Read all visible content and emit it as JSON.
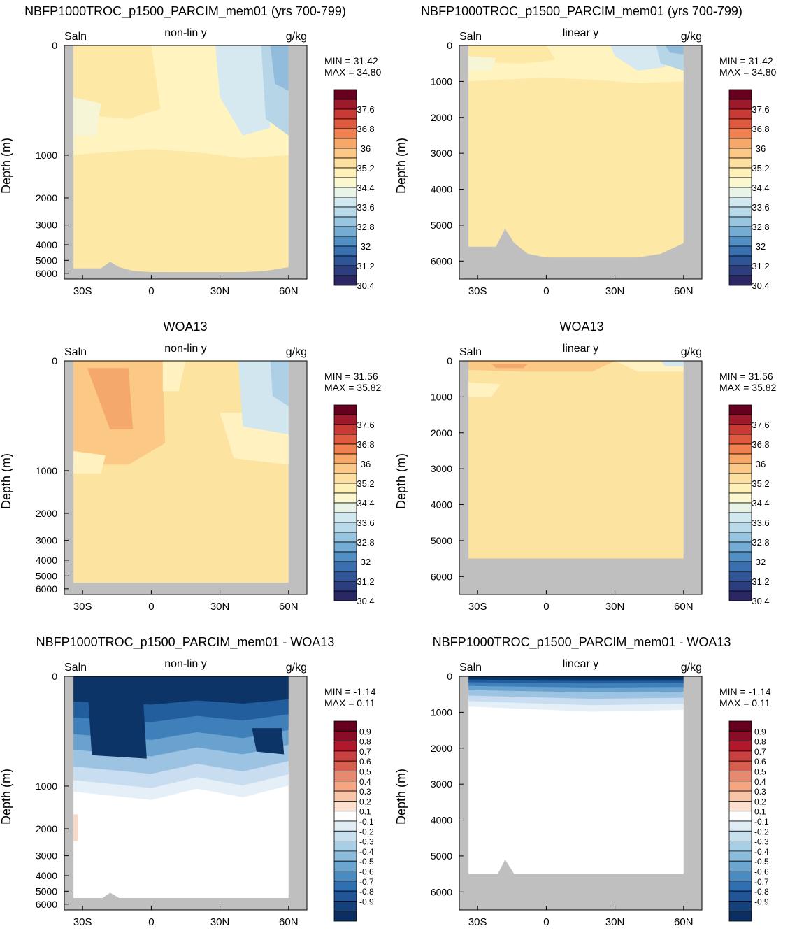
{
  "rows": [
    {
      "title": "NBFP1000TROC_p1500_PARCIM_mem01 (yrs 700-799)",
      "right_title": "NBFP1000TROC_p1500_PARCIM_mem01 (yrs 700-799)",
      "kind": "model",
      "min": "31.42",
      "max": "34.80"
    },
    {
      "title": "WOA13",
      "right_title": "WOA13",
      "kind": "obs",
      "min": "31.56",
      "max": "35.82"
    },
    {
      "title": "NBFP1000TROC_p1500_PARCIM_mem01 - WOA13",
      "right_title": "NBFP1000TROC_p1500_PARCIM_mem01 - WOA13",
      "kind": "diff",
      "min": "-1.14",
      "max": "0.11"
    }
  ],
  "common": {
    "left_label": "Saln",
    "units_label": "g/kg",
    "nonlin_label": "non-lin y",
    "linear_label": "linear y",
    "ylabel": "Depth (m)",
    "min_prefix": "MIN = ",
    "max_prefix": "MAX = ",
    "x_ticks": [
      "30S",
      "0",
      "30N",
      "60N"
    ],
    "x_tick_values": [
      -30,
      0,
      30,
      60
    ],
    "nonlin_y_ticks": [
      "0",
      "1000",
      "2000",
      "3000",
      "4000",
      "5000",
      "6000"
    ],
    "linear_y_ticks": [
      "0",
      "1000",
      "2000",
      "3000",
      "4000",
      "5000",
      "6000"
    ]
  },
  "salinity_colorbar": {
    "labels": [
      "37.6",
      "36.8",
      "36",
      "35.2",
      "34.4",
      "33.6",
      "32.8",
      "32",
      "31.2",
      "30.4"
    ],
    "colors": [
      "#67001f",
      "#9e1a2b",
      "#c83a33",
      "#e05a3f",
      "#f08050",
      "#f7a868",
      "#fbc888",
      "#fde0a0",
      "#fff0b8",
      "#fbf8d0",
      "#e8f4e8",
      "#d2e8f0",
      "#b8daea",
      "#98c6e0",
      "#74acd4",
      "#5290c4",
      "#3a70b0",
      "#2f5596",
      "#2c3e7e",
      "#2a2763"
    ],
    "shared_label_between_pairs": true
  },
  "difference_colorbar": {
    "labels": [
      "0.9",
      "0.8",
      "0.7",
      "0.6",
      "0.5",
      "0.4",
      "0.3",
      "0.2",
      "0.1",
      "-0.1",
      "-0.2",
      "-0.3",
      "-0.4",
      "-0.5",
      "-0.6",
      "-0.7",
      "-0.8",
      "-0.9"
    ],
    "colors": [
      "#67001f",
      "#8b0c26",
      "#b2182b",
      "#c8403f",
      "#d6604d",
      "#e7896f",
      "#f4a582",
      "#f8c4a8",
      "#fbe0d0",
      "#ffffff",
      "#e1edf5",
      "#c8e0ee",
      "#a8cfe5",
      "#8cbcdb",
      "#6aa6cf",
      "#4a8cc1",
      "#3070b0",
      "#215597",
      "#15427c",
      "#0b2f62"
    ]
  },
  "chart_data": [
    {
      "type": "heatmap",
      "panel": "model non-lin y",
      "x": [
        -38,
        68
      ],
      "y_range_m": [
        0,
        6500
      ],
      "min": 31.42,
      "max": 34.8
    },
    {
      "type": "heatmap",
      "panel": "model linear y",
      "x": [
        -38,
        68
      ],
      "y_range_m": [
        0,
        6500
      ],
      "min": 31.42,
      "max": 34.8
    },
    {
      "type": "heatmap",
      "panel": "obs non-lin y",
      "x": [
        -38,
        68
      ],
      "y_range_m": [
        0,
        6500
      ],
      "min": 31.56,
      "max": 35.82
    },
    {
      "type": "heatmap",
      "panel": "obs linear y",
      "x": [
        -38,
        68
      ],
      "y_range_m": [
        0,
        6500
      ],
      "min": 31.56,
      "max": 35.82
    },
    {
      "type": "heatmap",
      "panel": "diff non-lin y",
      "x": [
        -38,
        68
      ],
      "y_range_m": [
        0,
        6500
      ],
      "min": -1.14,
      "max": 0.11
    },
    {
      "type": "heatmap",
      "panel": "diff linear y",
      "x": [
        -38,
        68
      ],
      "y_range_m": [
        0,
        6500
      ],
      "min": -1.14,
      "max": 0.11
    }
  ]
}
